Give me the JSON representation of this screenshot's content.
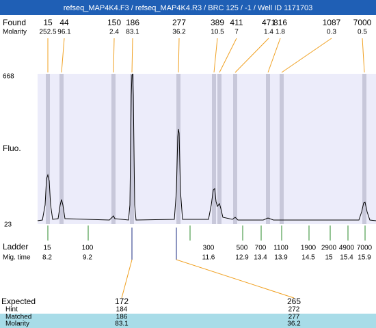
{
  "header": {
    "title": "refseq_MAP4K4.F3 / refseq_MAP4K4.R3 / BRC 125 / -1 / Well ID 1171703"
  },
  "found": {
    "label": "Found",
    "molarity_label": "Molarity",
    "peaks": [
      {
        "size": "15",
        "molarity": "252.5"
      },
      {
        "size": "44",
        "molarity": "96.1"
      },
      {
        "size": "150",
        "molarity": "2.4"
      },
      {
        "size": "186",
        "molarity": "83.1"
      },
      {
        "size": "277",
        "molarity": "36.2"
      },
      {
        "size": "389",
        "molarity": "10.5"
      },
      {
        "size": "411",
        "molarity": "7"
      },
      {
        "size": "471",
        "molarity": "1.4"
      },
      {
        "size": "816",
        "molarity": "1.8"
      },
      {
        "size": "1087",
        "molarity": "0.3"
      },
      {
        "size": "7000",
        "molarity": "0.5"
      }
    ]
  },
  "y_axis": {
    "top": "668",
    "bottom": "23",
    "label": "Fluo."
  },
  "ladder": {
    "label": "Ladder",
    "time_label": "Mig. time",
    "sizes": [
      "15",
      "100",
      "300",
      "500",
      "700",
      "1100",
      "1900",
      "2900",
      "4900",
      "7000"
    ],
    "times": [
      "8.2",
      "9.2",
      "11.6",
      "12.9",
      "13.4",
      "13.9",
      "14.5",
      "15",
      "15.4",
      "15.9"
    ]
  },
  "expected": {
    "labels": [
      "Expected",
      "Hint",
      "Matched",
      "Molarity"
    ],
    "columns": [
      {
        "expected": "172",
        "hint": "184",
        "matched": "186",
        "molarity": "83.1"
      },
      {
        "expected": "265",
        "hint": "272",
        "matched": "277",
        "molarity": "36.2"
      }
    ]
  }
}
